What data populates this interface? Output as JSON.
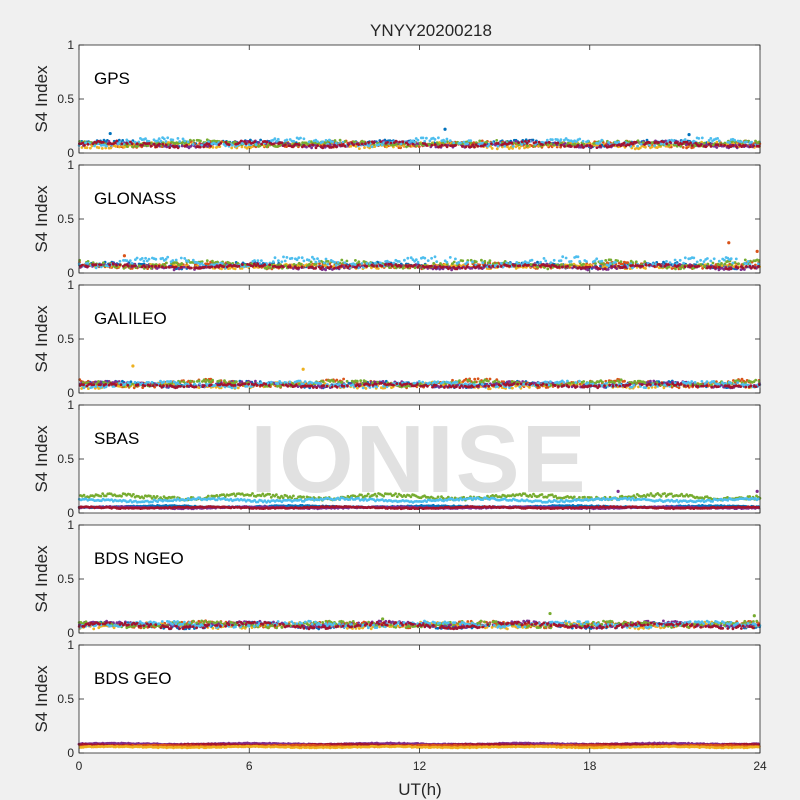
{
  "figure": {
    "title": "YNYY20200218",
    "xlabel": "UT(h)",
    "watermark": "IONISE"
  },
  "chart_data": {
    "type": "scatter",
    "title": "YNYY20200218",
    "xlabel": "UT(h)",
    "xlim": [
      0,
      24
    ],
    "xticks": [
      0,
      6,
      12,
      18,
      24
    ],
    "xtick_labels": [
      "0",
      "6",
      "12",
      "18",
      "24"
    ],
    "panels": [
      {
        "label": "GPS",
        "ylabel": "S4 Index",
        "ylim": [
          0,
          1
        ],
        "yticks": [
          0,
          0.5,
          1
        ],
        "ytick_labels": [
          "0",
          "0.5",
          "1"
        ],
        "series_colors": [
          "#0072BD",
          "#D95319",
          "#EDB120",
          "#7E2F8E",
          "#77AC30",
          "#4DBEEE",
          "#A2142F"
        ],
        "series_baseline": [
          0.09,
          0.08,
          0.07,
          0.08,
          0.09,
          0.1,
          0.08
        ],
        "series_spread": [
          0.03,
          0.03,
          0.03,
          0.03,
          0.03,
          0.04,
          0.03
        ],
        "peaks": [
          {
            "x": 1.1,
            "y": 0.18
          },
          {
            "x": 12.9,
            "y": 0.22
          },
          {
            "x": 21.5,
            "y": 0.17
          }
        ]
      },
      {
        "label": "GLONASS",
        "ylabel": "S4 Index",
        "ylim": [
          0,
          1
        ],
        "yticks": [
          0,
          0.5,
          1
        ],
        "ytick_labels": [
          "0",
          "0.5",
          "1"
        ],
        "series_colors": [
          "#0072BD",
          "#D95319",
          "#EDB120",
          "#7E2F8E",
          "#77AC30",
          "#4DBEEE",
          "#A2142F"
        ],
        "series_baseline": [
          0.07,
          0.07,
          0.06,
          0.06,
          0.08,
          0.1,
          0.06
        ],
        "series_spread": [
          0.03,
          0.03,
          0.02,
          0.03,
          0.04,
          0.05,
          0.02
        ],
        "peaks": [
          {
            "x": 22.9,
            "y": 0.28
          },
          {
            "x": 23.9,
            "y": 0.2
          },
          {
            "x": 1.6,
            "y": 0.16
          }
        ]
      },
      {
        "label": "GALILEO",
        "ylabel": "S4 Index",
        "ylim": [
          0,
          1
        ],
        "yticks": [
          0,
          0.5,
          1
        ],
        "ytick_labels": [
          "0",
          "0.5",
          "1"
        ],
        "series_colors": [
          "#0072BD",
          "#D95319",
          "#EDB120",
          "#7E2F8E",
          "#77AC30",
          "#4DBEEE",
          "#A2142F"
        ],
        "series_baseline": [
          0.08,
          0.09,
          0.07,
          0.08,
          0.09,
          0.08,
          0.07
        ],
        "series_spread": [
          0.03,
          0.04,
          0.03,
          0.03,
          0.03,
          0.03,
          0.02
        ],
        "peaks": [
          {
            "x": 1.9,
            "y": 0.25
          },
          {
            "x": 7.9,
            "y": 0.22
          }
        ]
      },
      {
        "label": "SBAS",
        "ylabel": "S4 Index",
        "ylim": [
          0,
          1
        ],
        "yticks": [
          0,
          0.5,
          1
        ],
        "ytick_labels": [
          "0",
          "0.5",
          "1"
        ],
        "series_colors": [
          "#77AC30",
          "#4DBEEE",
          "#0072BD",
          "#7E2F8E",
          "#A2142F"
        ],
        "series_baseline": [
          0.15,
          0.12,
          0.06,
          0.05,
          0.05
        ],
        "series_spread": [
          0.03,
          0.02,
          0.01,
          0.01,
          0.01
        ],
        "peaks": [
          {
            "x": 19.0,
            "y": 0.2
          },
          {
            "x": 23.9,
            "y": 0.2
          }
        ]
      },
      {
        "label": "BDS NGEO",
        "ylabel": "S4 Index",
        "ylim": [
          0,
          1
        ],
        "yticks": [
          0,
          0.5,
          1
        ],
        "ytick_labels": [
          "0",
          "0.5",
          "1"
        ],
        "series_colors": [
          "#0072BD",
          "#D95319",
          "#EDB120",
          "#7E2F8E",
          "#77AC30",
          "#4DBEEE",
          "#A2142F"
        ],
        "series_baseline": [
          0.07,
          0.08,
          0.07,
          0.08,
          0.08,
          0.08,
          0.07
        ],
        "series_spread": [
          0.03,
          0.03,
          0.03,
          0.03,
          0.03,
          0.03,
          0.03
        ],
        "peaks": [
          {
            "x": 16.6,
            "y": 0.18
          },
          {
            "x": 23.8,
            "y": 0.16
          },
          {
            "x": 10.7,
            "y": 0.13
          }
        ]
      },
      {
        "label": "BDS GEO",
        "ylabel": "S4 Index",
        "ylim": [
          0,
          1
        ],
        "yticks": [
          0,
          0.5,
          1
        ],
        "ytick_labels": [
          "0",
          "0.5",
          "1"
        ],
        "series_colors": [
          "#7E2F8E",
          "#A2142F",
          "#D95319",
          "#EDB120"
        ],
        "series_baseline": [
          0.085,
          0.075,
          0.065,
          0.055
        ],
        "series_spread": [
          0.008,
          0.008,
          0.008,
          0.008
        ],
        "peaks": []
      }
    ]
  }
}
